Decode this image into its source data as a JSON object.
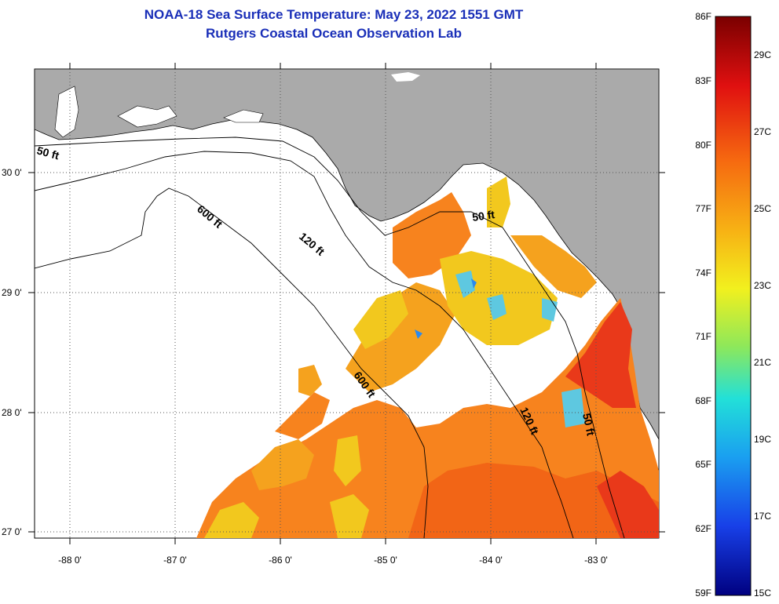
{
  "title_line1": "NOAA-18 Sea Surface Temperature:  May 23, 2022 1551 GMT",
  "title_line2": "Rutgers Coastal Ocean Observation Lab",
  "x_ticks": [
    "-88 0'",
    "-87 0'",
    "-86 0'",
    "-85 0'",
    "-84 0'",
    "-83 0'"
  ],
  "y_ticks": [
    "30 0'",
    "29 0'",
    "28 0'",
    "27 0'"
  ],
  "contours": [
    "50 ft",
    "600 ft",
    "120 ft",
    "50 ft",
    "600 ft",
    "120 ft",
    "50 ft"
  ],
  "colorbar": {
    "fahrenheit": [
      "86F",
      "83F",
      "80F",
      "77F",
      "74F",
      "71F",
      "68F",
      "65F",
      "62F",
      "59F"
    ],
    "celsius": [
      "29C",
      "27C",
      "25C",
      "23C",
      "21C",
      "19C",
      "17C",
      "15C"
    ]
  },
  "colors": {
    "title": "#1a2fb8",
    "land": "#aaaaaa",
    "ocean_nodata": "#ffffff",
    "sst_warm": "#f77a1a",
    "sst_hot": "#e82a10",
    "sst_mid": "#f2c81e",
    "sst_cool": "#5ec8e0"
  }
}
